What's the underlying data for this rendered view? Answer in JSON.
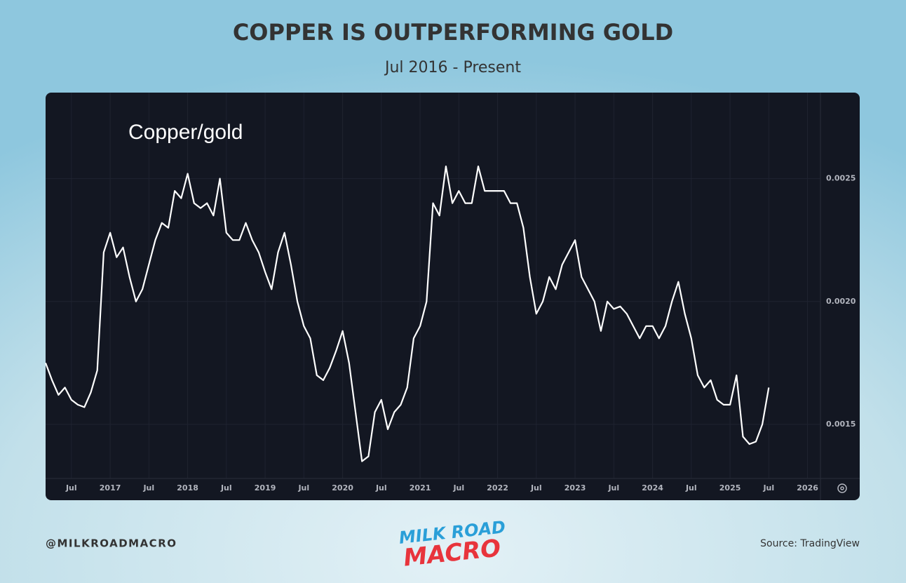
{
  "chart_data": {
    "type": "line",
    "title": "COPPER IS OUTPERFORMING GOLD",
    "subtitle": "Jul 2016 - Present",
    "x": [
      "2016-03",
      "2016-04",
      "2016-05",
      "2016-06",
      "2016-07",
      "2016-08",
      "2016-09",
      "2016-10",
      "2016-11",
      "2016-12",
      "2017-01",
      "2017-02",
      "2017-03",
      "2017-04",
      "2017-05",
      "2017-06",
      "2017-07",
      "2017-08",
      "2017-09",
      "2017-10",
      "2017-11",
      "2017-12",
      "2018-01",
      "2018-02",
      "2018-03",
      "2018-04",
      "2018-05",
      "2018-06",
      "2018-07",
      "2018-08",
      "2018-09",
      "2018-10",
      "2018-11",
      "2018-12",
      "2019-01",
      "2019-02",
      "2019-03",
      "2019-04",
      "2019-05",
      "2019-06",
      "2019-07",
      "2019-08",
      "2019-09",
      "2019-10",
      "2019-11",
      "2019-12",
      "2020-01",
      "2020-02",
      "2020-03",
      "2020-04",
      "2020-05",
      "2020-06",
      "2020-07",
      "2020-08",
      "2020-09",
      "2020-10",
      "2020-11",
      "2020-12",
      "2021-01",
      "2021-02",
      "2021-03",
      "2021-04",
      "2021-05",
      "2021-06",
      "2021-07",
      "2021-08",
      "2021-09",
      "2021-10",
      "2021-11",
      "2021-12",
      "2022-01",
      "2022-02",
      "2022-03",
      "2022-04",
      "2022-05",
      "2022-06",
      "2022-07",
      "2022-08",
      "2022-09",
      "2022-10",
      "2022-11",
      "2022-12",
      "2023-01",
      "2023-02",
      "2023-03",
      "2023-04",
      "2023-05",
      "2023-06",
      "2023-07",
      "2023-08",
      "2023-09",
      "2023-10",
      "2023-11",
      "2023-12",
      "2024-01",
      "2024-02",
      "2024-03",
      "2024-04",
      "2024-05",
      "2024-06",
      "2024-07",
      "2024-08",
      "2024-09",
      "2024-10",
      "2024-11",
      "2024-12",
      "2025-01",
      "2025-02",
      "2025-03",
      "2025-04",
      "2025-05",
      "2025-06",
      "2025-07"
    ],
    "series": [
      {
        "name": "Copper/gold",
        "color": "#ffffff",
        "values": [
          0.00175,
          0.00168,
          0.00162,
          0.00165,
          0.0016,
          0.00158,
          0.00157,
          0.00163,
          0.00172,
          0.0022,
          0.00228,
          0.00218,
          0.00222,
          0.0021,
          0.002,
          0.00205,
          0.00215,
          0.00225,
          0.00232,
          0.0023,
          0.00245,
          0.00242,
          0.00252,
          0.0024,
          0.00238,
          0.0024,
          0.00235,
          0.0025,
          0.00228,
          0.00225,
          0.00225,
          0.00232,
          0.00225,
          0.0022,
          0.00212,
          0.00205,
          0.0022,
          0.00228,
          0.00215,
          0.002,
          0.0019,
          0.00185,
          0.0017,
          0.00168,
          0.00173,
          0.0018,
          0.00188,
          0.00175,
          0.00155,
          0.00135,
          0.00137,
          0.00155,
          0.0016,
          0.00148,
          0.00155,
          0.00158,
          0.00165,
          0.00185,
          0.0019,
          0.002,
          0.0024,
          0.00235,
          0.00255,
          0.0024,
          0.00245,
          0.0024,
          0.0024,
          0.00255,
          0.00245,
          0.00245,
          0.00245,
          0.00245,
          0.0024,
          0.0024,
          0.0023,
          0.0021,
          0.00195,
          0.002,
          0.0021,
          0.00205,
          0.00215,
          0.0022,
          0.00225,
          0.0021,
          0.00205,
          0.002,
          0.00188,
          0.002,
          0.00197,
          0.00198,
          0.00195,
          0.0019,
          0.00185,
          0.0019,
          0.0019,
          0.00185,
          0.0019,
          0.002,
          0.00208,
          0.00195,
          0.00185,
          0.0017,
          0.00165,
          0.00168,
          0.0016,
          0.00158,
          0.00158,
          0.0017,
          0.00145,
          0.00142,
          0.00143,
          0.0015,
          0.00165
        ]
      }
    ],
    "xlim": [
      "2016-03",
      "2026-03"
    ],
    "xticks": [
      {
        "value": "2016-07",
        "label": "Jul"
      },
      {
        "value": "2017-01",
        "label": "2017"
      },
      {
        "value": "2017-07",
        "label": "Jul"
      },
      {
        "value": "2018-01",
        "label": "2018"
      },
      {
        "value": "2018-07",
        "label": "Jul"
      },
      {
        "value": "2019-01",
        "label": "2019"
      },
      {
        "value": "2019-07",
        "label": "Jul"
      },
      {
        "value": "2020-01",
        "label": "2020"
      },
      {
        "value": "2020-07",
        "label": "Jul"
      },
      {
        "value": "2021-01",
        "label": "2021"
      },
      {
        "value": "2021-07",
        "label": "Jul"
      },
      {
        "value": "2022-01",
        "label": "2022"
      },
      {
        "value": "2022-07",
        "label": "Jul"
      },
      {
        "value": "2023-01",
        "label": "2023"
      },
      {
        "value": "2023-07",
        "label": "Jul"
      },
      {
        "value": "2024-01",
        "label": "2024"
      },
      {
        "value": "2024-07",
        "label": "Jul"
      },
      {
        "value": "2025-01",
        "label": "2025"
      },
      {
        "value": "2025-07",
        "label": "Jul"
      },
      {
        "value": "2026-01",
        "label": "2026"
      }
    ],
    "ylim": [
      0.00128,
      0.00285
    ],
    "yticks": [
      0.0015,
      {
        "value": 0.002,
        "label": "0.0020"
      },
      0.0025
    ],
    "grid": true
  },
  "footer": {
    "handle": "@MILKROADMACRO",
    "source": "Source: TradingView",
    "logo": [
      "MILK ROAD",
      "MACRO"
    ]
  }
}
